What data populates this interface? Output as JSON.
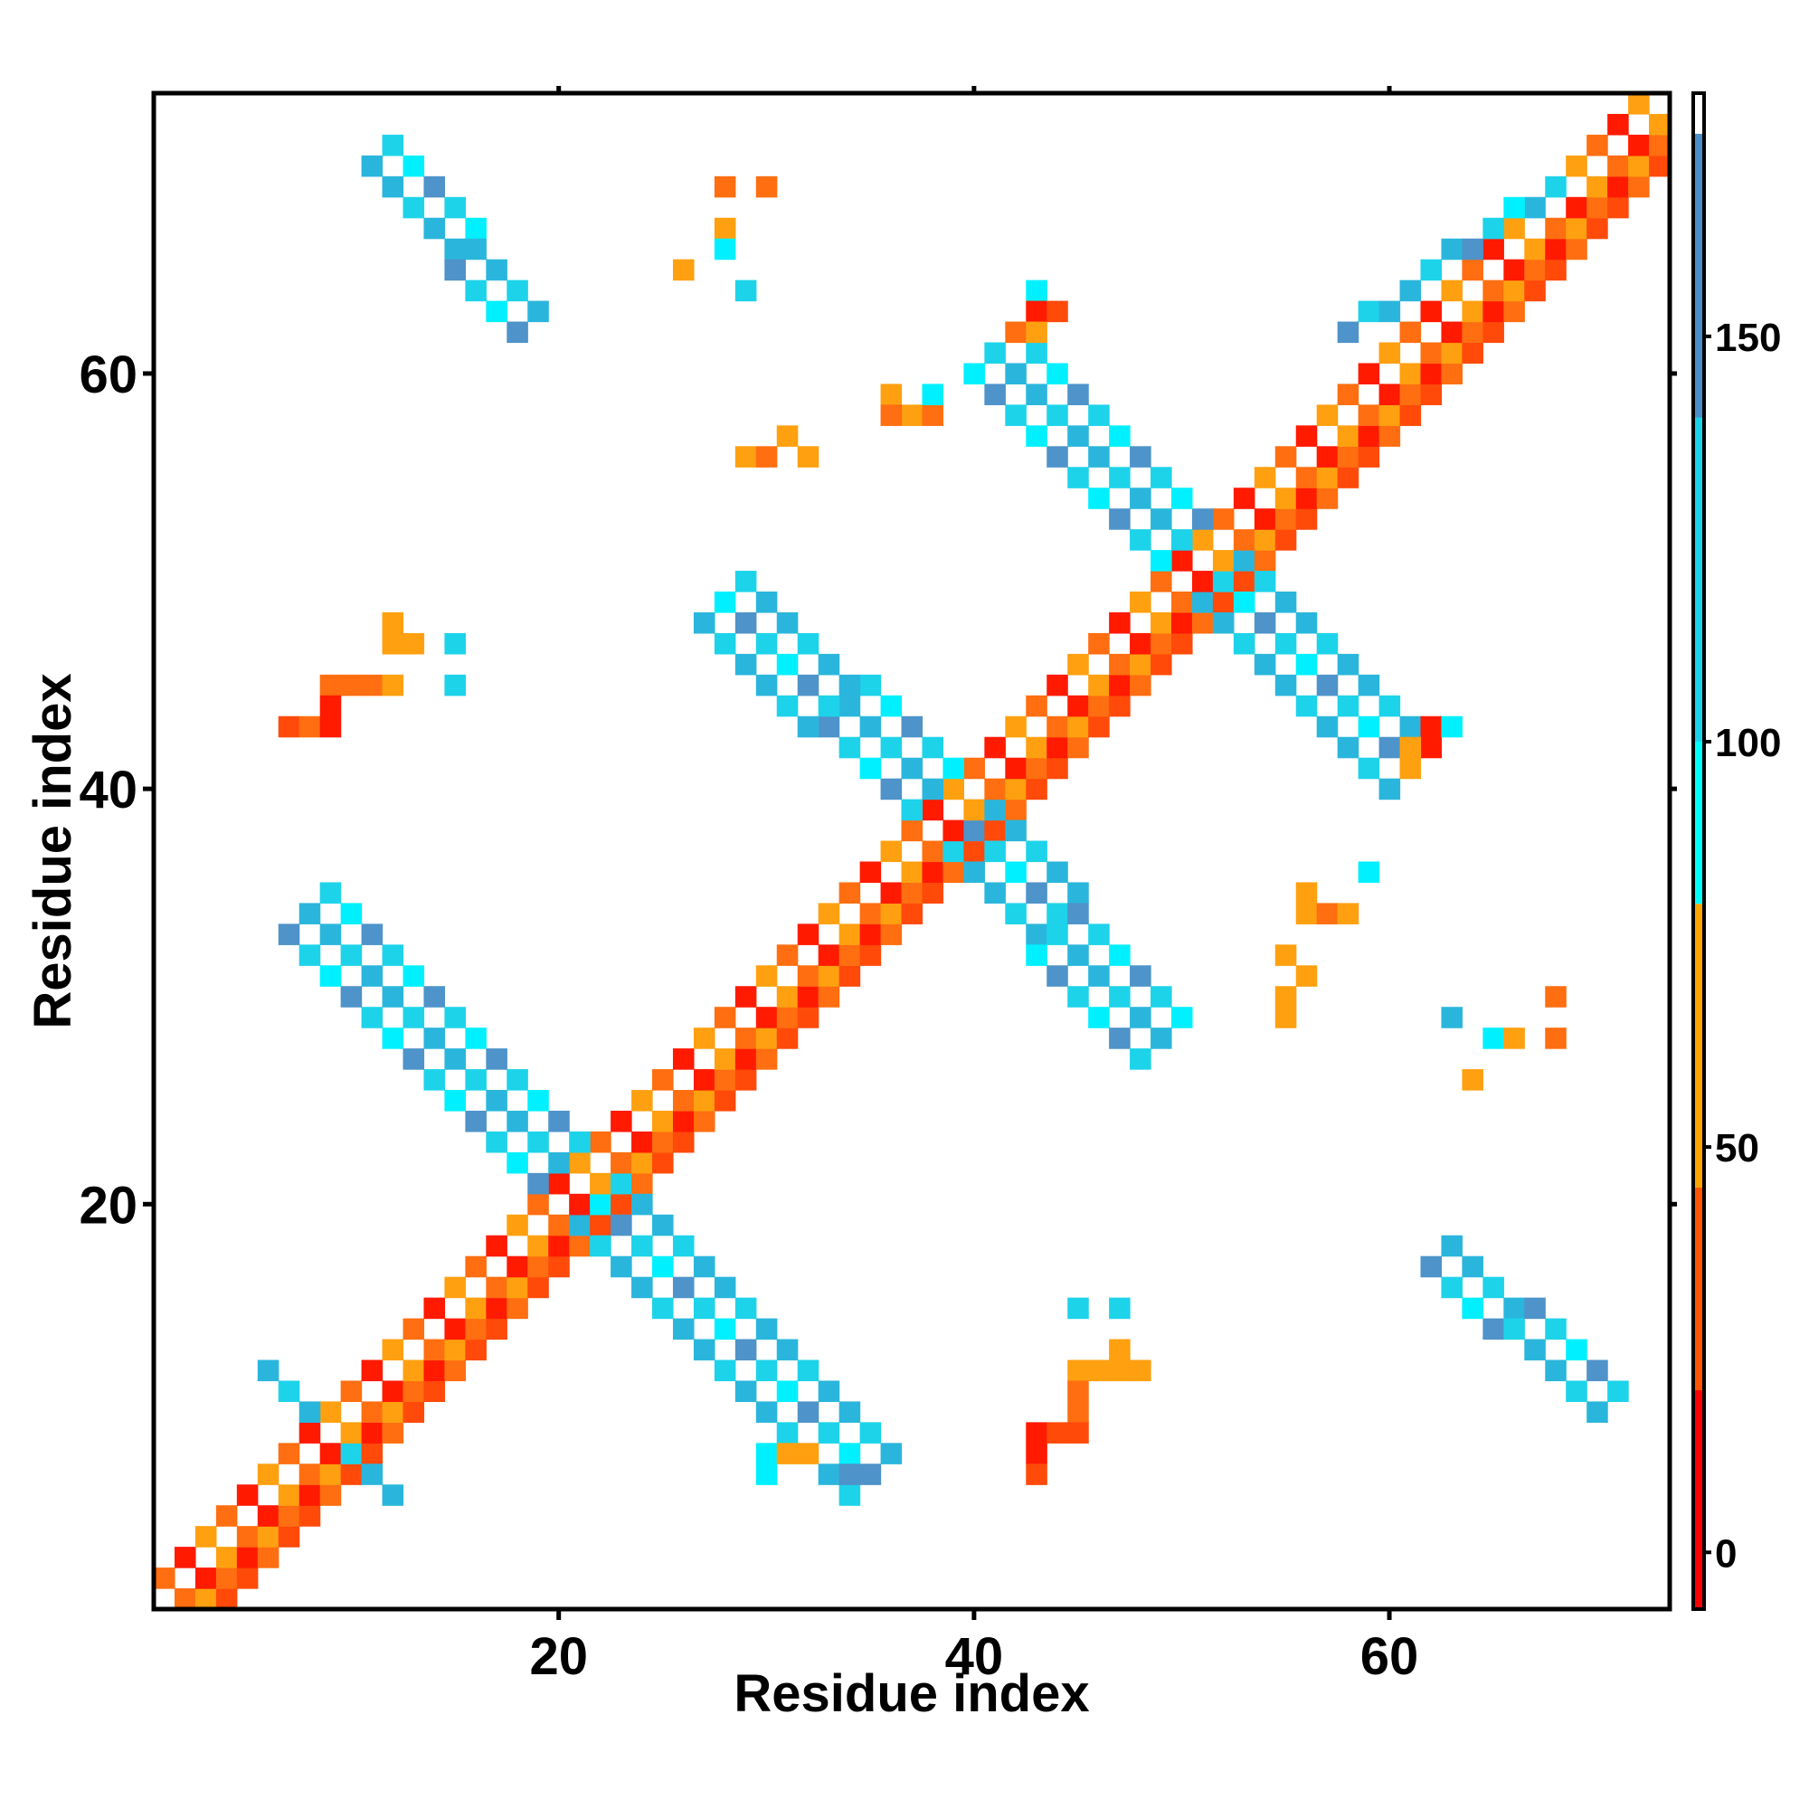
{
  "chart_data": {
    "type": "heatmap",
    "title": "",
    "xlabel": "Residue index",
    "ylabel": "Residue index",
    "xlim": [
      0.5,
      73.5
    ],
    "ylim": [
      0.5,
      73.5
    ],
    "xticks": [
      20,
      40,
      60
    ],
    "yticks": [
      20,
      40,
      60
    ],
    "grid": false,
    "colorbar": {
      "min": -7,
      "max": 180,
      "ticks": [
        0,
        50,
        100,
        150
      ],
      "bands": [
        {
          "from": -7,
          "to": 20,
          "color": "#ff0000"
        },
        {
          "from": 20,
          "to": 45,
          "color": "#ff5500"
        },
        {
          "from": 45,
          "to": 80,
          "color": "#ffa500"
        },
        {
          "from": 80,
          "to": 100,
          "color": "#00ffff"
        },
        {
          "from": 100,
          "to": 140,
          "color": "#1ad2e8"
        },
        {
          "from": 140,
          "to": 175,
          "color": "#4a8ec8"
        },
        {
          "from": 175,
          "to": 180,
          "color": "#ffffff"
        }
      ]
    },
    "colors": {
      "red": "#ff1a00",
      "redorange": "#ff4a0a",
      "orange": "#ff6e10",
      "amber": "#ffa010",
      "cyan": "#00f0ff",
      "lightblue": "#1dd3ea",
      "skyblue": "#2ab6dc",
      "steelblue": "#4e93c9"
    },
    "regions": [
      {
        "name": "diagonal-band",
        "color_set": "warm",
        "from": [
          2,
          1
        ],
        "to": [
          73,
          72
        ],
        "width": 3
      },
      {
        "name": "diagonal-band-upper",
        "color_set": "warm",
        "from": [
          1,
          2
        ],
        "to": [
          72,
          73
        ],
        "width": 3
      },
      {
        "name": "anti-diagonal-center-ul",
        "color_set": "blue",
        "from": [
          38,
          38
        ],
        "to": [
          27,
          48
        ],
        "width": 3
      },
      {
        "name": "anti-diagonal-center-lr",
        "color_set": "blue",
        "from": [
          38,
          38
        ],
        "to": [
          48,
          27
        ],
        "width": 3
      },
      {
        "name": "anti-diagonal-lower-ul",
        "color_set": "blue",
        "from": [
          20,
          20
        ],
        "to": [
          7,
          33
        ],
        "width": 3
      },
      {
        "name": "anti-diagonal-lower-lr",
        "color_set": "blue",
        "from": [
          20,
          20
        ],
        "to": [
          34,
          6
        ],
        "width": 3
      },
      {
        "name": "anti-diagonal-upper-ul",
        "color_set": "blue",
        "from": [
          50,
          50
        ],
        "to": [
          40,
          60
        ],
        "width": 3
      },
      {
        "name": "anti-diagonal-upper-lr",
        "color_set": "blue",
        "from": [
          50,
          50
        ],
        "to": [
          60,
          40
        ],
        "width": 3
      },
      {
        "name": "strand-pair-top-left",
        "color_set": "blue",
        "from": [
          11,
          70
        ],
        "to": [
          18,
          62
        ],
        "width": 2
      },
      {
        "name": "strand-pair-bottom-right",
        "color_set": "blue",
        "from": [
          62,
          17
        ],
        "to": [
          70,
          10
        ],
        "width": 2
      },
      {
        "name": "diagonal-blue-upper",
        "color_set": "blue",
        "from": [
          58,
          62
        ],
        "to": [
          68,
          69
        ],
        "width": 1
      },
      {
        "name": "diagonal-blue-lower",
        "color_set": "blue",
        "from": [
          6,
          12
        ],
        "to": [
          12,
          6
        ],
        "width": 1
      }
    ],
    "cells": [
      [
        28,
        69,
        "orange"
      ],
      [
        30,
        69,
        "orange"
      ],
      [
        28,
        67,
        "amber"
      ],
      [
        28,
        66,
        "cyan"
      ],
      [
        26,
        65,
        "amber"
      ],
      [
        29,
        64,
        "lightblue"
      ],
      [
        36,
        59,
        "amber"
      ],
      [
        37,
        58,
        "amber"
      ],
      [
        38,
        58,
        "orange"
      ],
      [
        36,
        58,
        "orange"
      ],
      [
        38,
        59,
        "cyan"
      ],
      [
        29,
        56,
        "amber"
      ],
      [
        30,
        56,
        "orange"
      ],
      [
        31,
        57,
        "amber"
      ],
      [
        32,
        56,
        "amber"
      ],
      [
        12,
        48,
        "amber"
      ],
      [
        12,
        47,
        "amber"
      ],
      [
        13,
        47,
        "amber"
      ],
      [
        15,
        47,
        "lightblue"
      ],
      [
        15,
        45,
        "lightblue"
      ],
      [
        9,
        45,
        "orange"
      ],
      [
        10,
        45,
        "orange"
      ],
      [
        11,
        45,
        "orange"
      ],
      [
        12,
        45,
        "amber"
      ],
      [
        9,
        44,
        "red"
      ],
      [
        7,
        43,
        "redorange"
      ],
      [
        8,
        43,
        "orange"
      ],
      [
        9,
        43,
        "red"
      ],
      [
        43,
        64,
        "cyan"
      ],
      [
        43,
        63,
        "red"
      ],
      [
        44,
        63,
        "redorange"
      ],
      [
        42,
        62,
        "orange"
      ],
      [
        43,
        62,
        "amber"
      ],
      [
        56,
        34,
        "amber"
      ],
      [
        57,
        34,
        "orange"
      ],
      [
        58,
        34,
        "amber"
      ],
      [
        56,
        35,
        "amber"
      ],
      [
        59,
        36,
        "cyan"
      ],
      [
        55,
        32,
        "amber"
      ],
      [
        56,
        31,
        "amber"
      ],
      [
        55,
        30,
        "amber"
      ],
      [
        55,
        29,
        "amber"
      ],
      [
        63,
        29,
        "skyblue"
      ],
      [
        65,
        28,
        "cyan"
      ],
      [
        66,
        28,
        "amber"
      ],
      [
        68,
        28,
        "orange"
      ],
      [
        68,
        30,
        "orange"
      ],
      [
        64,
        26,
        "amber"
      ],
      [
        62,
        43,
        "red"
      ],
      [
        63,
        43,
        "cyan"
      ],
      [
        61,
        42,
        "amber"
      ],
      [
        62,
        42,
        "red"
      ],
      [
        61,
        41,
        "amber"
      ],
      [
        45,
        15,
        "lightblue"
      ],
      [
        47,
        15,
        "lightblue"
      ],
      [
        45,
        12,
        "amber"
      ],
      [
        46,
        12,
        "amber"
      ],
      [
        47,
        12,
        "amber"
      ],
      [
        48,
        12,
        "amber"
      ],
      [
        47,
        13,
        "amber"
      ],
      [
        45,
        11,
        "orange"
      ],
      [
        45,
        10,
        "orange"
      ],
      [
        43,
        9,
        "red"
      ],
      [
        44,
        9,
        "redorange"
      ],
      [
        45,
        9,
        "redorange"
      ],
      [
        43,
        8,
        "red"
      ],
      [
        43,
        7,
        "redorange"
      ],
      [
        30,
        8,
        "cyan"
      ],
      [
        31,
        8,
        "amber"
      ],
      [
        32,
        8,
        "amber"
      ],
      [
        30,
        7,
        "cyan"
      ],
      [
        34,
        7,
        "steelblue"
      ]
    ]
  }
}
